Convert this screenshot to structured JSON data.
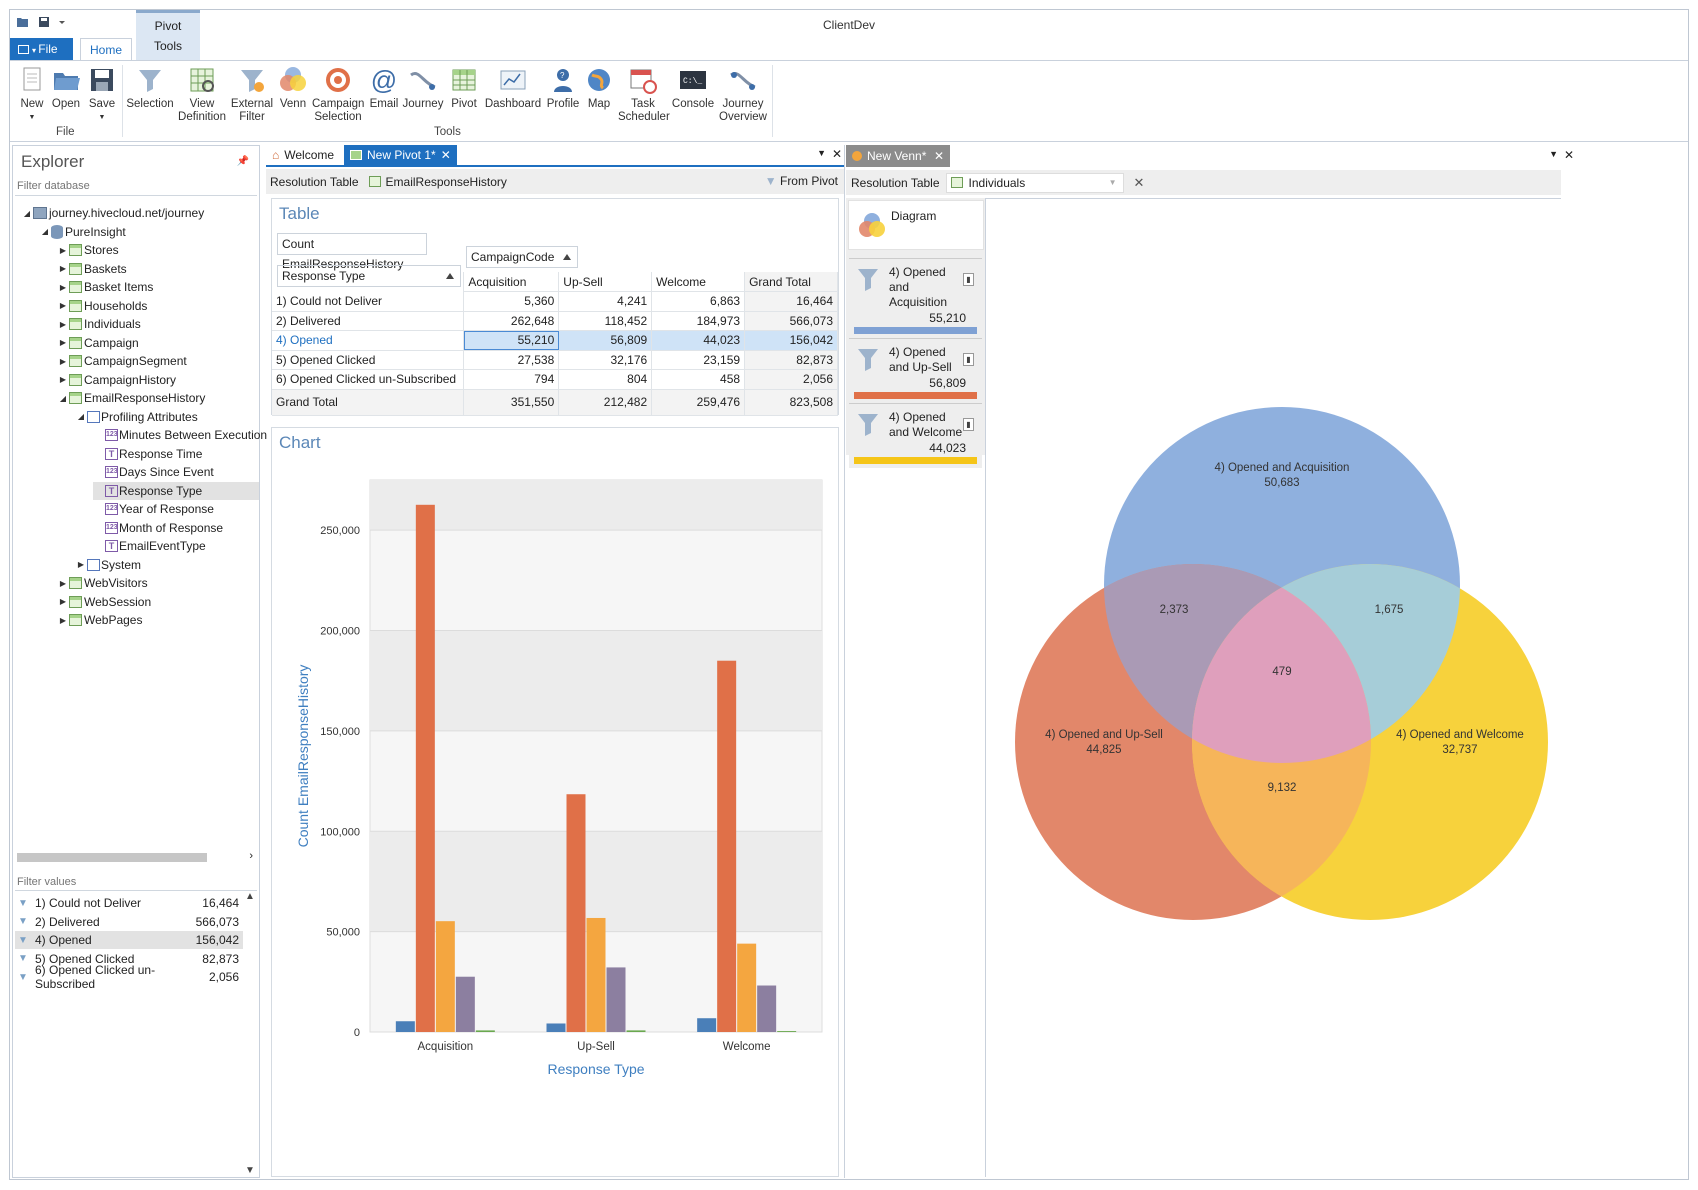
{
  "window": {
    "title": "ClientDev"
  },
  "ribbon": {
    "file_label": "File",
    "home_tab": "Home",
    "pivot_context_top": "Pivot",
    "pivot_context_bottom": "Tools",
    "group_file": "File",
    "group_tools": "Tools",
    "buttons": {
      "new": "New",
      "open": "Open",
      "save": "Save",
      "selection": "Selection",
      "view_definition_1": "View",
      "view_definition_2": "Definition",
      "external_filter_1": "External",
      "external_filter_2": "Filter",
      "venn": "Venn",
      "campaign_selection_1": "Campaign",
      "campaign_selection_2": "Selection",
      "email": "Email",
      "journey": "Journey",
      "pivot": "Pivot",
      "dashboard": "Dashboard",
      "profile": "Profile",
      "map": "Map",
      "task_scheduler_1": "Task",
      "task_scheduler_2": "Scheduler",
      "console": "Console",
      "journey_overview_1": "Journey",
      "journey_overview_2": "Overview"
    }
  },
  "explorer": {
    "title": "Explorer",
    "filter_placeholder": "Filter database",
    "tree": {
      "server": "journey.hivecloud.net/journey",
      "database": "PureInsight",
      "tables": [
        "Stores",
        "Baskets",
        "Basket Items",
        "Households",
        "Individuals",
        "Campaign",
        "CampaignSegment",
        "CampaignHistory",
        "EmailResponseHistory"
      ],
      "profiling": "Profiling Attributes",
      "attributes": [
        "Minutes Between Execution",
        "Response Time",
        "Days Since Event",
        "Response Type",
        "Year of Response",
        "Month of Response",
        "EmailEventType"
      ],
      "after": [
        "System",
        "WebVisitors",
        "WebSession",
        "WebPages"
      ]
    },
    "filter_values_placeholder": "Filter values",
    "filter_values": [
      {
        "label": "1) Could not Deliver",
        "value": "16,464"
      },
      {
        "label": "2) Delivered",
        "value": "566,073"
      },
      {
        "label": "4) Opened",
        "value": "156,042"
      },
      {
        "label": "5) Opened Clicked",
        "value": "82,873"
      },
      {
        "label": "6) Opened Clicked un-Subscribed",
        "value": "2,056"
      }
    ]
  },
  "pivot_doc": {
    "tabs": [
      "Welcome",
      "New Pivot 1*"
    ],
    "resolution_label": "Resolution Table",
    "resolution_table": "EmailResponseHistory",
    "from_pivot": "From Pivot",
    "table_title": "Table",
    "measure": "Count EmailResponseHistory",
    "column_field": "CampaignCode",
    "row_field": "Response Type",
    "columns": [
      "Acquisition",
      "Up-Sell",
      "Welcome",
      "Grand Total"
    ],
    "rows": [
      {
        "label": "1) Could not Deliver",
        "values": [
          "5,360",
          "4,241",
          "6,863",
          "16,464"
        ]
      },
      {
        "label": "2) Delivered",
        "values": [
          "262,648",
          "118,452",
          "184,973",
          "566,073"
        ]
      },
      {
        "label": "4) Opened",
        "values": [
          "55,210",
          "56,809",
          "44,023",
          "156,042"
        ]
      },
      {
        "label": "5) Opened Clicked",
        "values": [
          "27,538",
          "32,176",
          "23,159",
          "82,873"
        ]
      },
      {
        "label": "6) Opened Clicked un-Subscribed",
        "values": [
          "794",
          "804",
          "458",
          "2,056"
        ]
      }
    ],
    "grand_total": {
      "label": "Grand Total",
      "values": [
        "351,550",
        "212,482",
        "259,476",
        "823,508"
      ]
    },
    "chart_title": "Chart"
  },
  "chart_data": {
    "type": "bar",
    "categories": [
      "Acquisition",
      "Up-Sell",
      "Welcome"
    ],
    "series": [
      {
        "values": [
          5360,
          4241,
          6863
        ],
        "color": "#4a7fb8"
      },
      {
        "values": [
          262648,
          118452,
          184973
        ],
        "color": "#e07048"
      },
      {
        "values": [
          55210,
          56809,
          44023
        ],
        "color": "#f4a640"
      },
      {
        "values": [
          27538,
          32176,
          23159
        ],
        "color": "#8c7fa0"
      },
      {
        "values": [
          794,
          804,
          458
        ],
        "color": "#6aa84f"
      }
    ],
    "xlabel": "Response Type",
    "ylabel": "Count EmailResponseHistory",
    "ylim": [
      0,
      275000
    ],
    "yticks": [
      "0",
      "50,000",
      "100,000",
      "150,000",
      "200,000",
      "250,000"
    ],
    "grid": true
  },
  "venn_doc": {
    "tab": "New Venn*",
    "resolution_label": "Resolution Table",
    "resolution_table": "Individuals",
    "diagram_label": "Diagram",
    "sets": [
      {
        "line1": "4) Opened",
        "line2": "and",
        "line3": "Acquisition",
        "value": "55,210",
        "color": "#7fa1d4"
      },
      {
        "line1": "4) Opened",
        "line2": "and Up-Sell",
        "line3": "",
        "value": "56,809",
        "color": "#e07048"
      },
      {
        "line1": "4) Opened",
        "line2": "and Welcome",
        "line3": "",
        "value": "44,023",
        "color": "#f5c518"
      }
    ],
    "regions": {
      "a_label": "4) Opened and Acquisition",
      "a_value": "50,683",
      "b_label": "4) Opened and Up-Sell",
      "b_value": "44,825",
      "c_label": "4) Opened and Welcome",
      "c_value": "32,737",
      "ab": "2,373",
      "ac": "1,675",
      "bc": "9,132",
      "abc": "479"
    },
    "colors": {
      "a": "#8fb0de",
      "b": "#e2876a",
      "c": "#f7d23c",
      "ab": "#aa9ab5",
      "ac": "#a6cdd8",
      "bc": "#f6b55a",
      "abc": "#df9fbc"
    }
  }
}
